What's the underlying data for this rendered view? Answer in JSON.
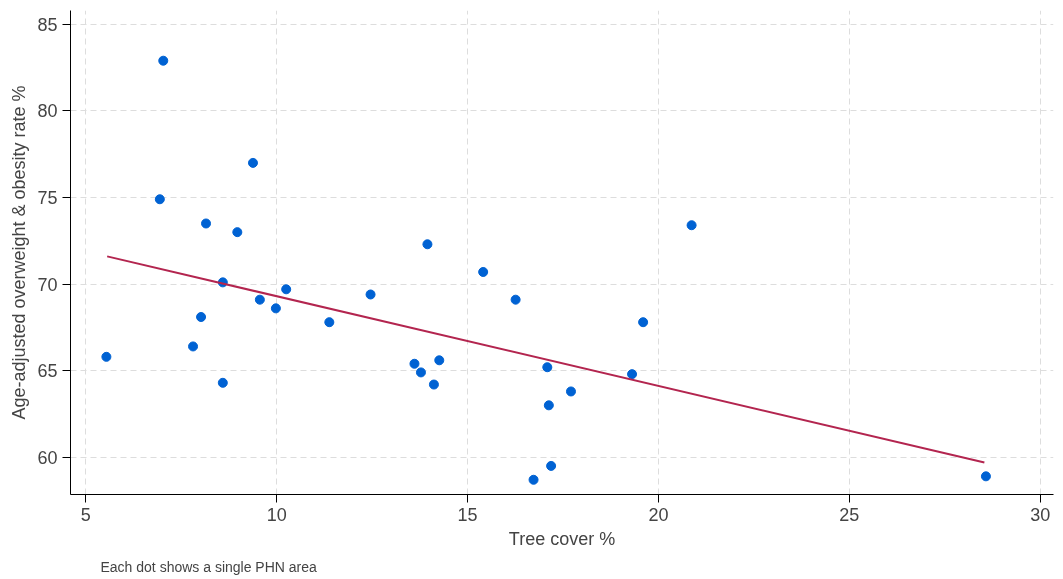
{
  "chart_data": {
    "type": "scatter",
    "xlabel": "Tree cover %",
    "ylabel": "Age-adjusted overweight & obesity rate %",
    "annotations": [
      "Each dot shows a single PHN area"
    ],
    "xlim": [
      4.6,
      30.35
    ],
    "ylim": [
      57.85,
      85.8
    ],
    "xticks": [
      5,
      10,
      15,
      20,
      25,
      30
    ],
    "yticks": [
      60,
      65,
      70,
      75,
      80,
      85
    ],
    "grid": true,
    "series": [
      {
        "marker": "circle",
        "color": "#0062d3",
        "x": [
          5.54,
          7.03,
          9.38,
          6.94,
          8.15,
          8.97,
          13.95,
          8.59,
          9.56,
          10.25,
          9.98,
          12.46,
          8.02,
          11.38,
          7.81,
          8.59,
          13.61,
          13.78,
          15.41,
          16.26,
          20.87,
          19.6,
          14.26,
          14.12,
          17.09,
          19.31,
          17.71,
          17.13,
          17.19,
          16.73,
          28.58
        ],
        "values": [
          65.8,
          82.9,
          77.0,
          74.9,
          73.5,
          73.0,
          72.3,
          70.1,
          69.1,
          69.7,
          68.6,
          69.4,
          68.1,
          67.8,
          66.4,
          64.3,
          65.4,
          64.9,
          70.7,
          69.1,
          73.4,
          67.8,
          65.6,
          64.2,
          65.2,
          64.8,
          63.8,
          63.0,
          59.5,
          58.7,
          58.9
        ]
      },
      {
        "type": "line",
        "color": "#b3254f",
        "x": [
          5.56,
          28.54
        ],
        "values": [
          71.6,
          59.7
        ]
      }
    ]
  }
}
